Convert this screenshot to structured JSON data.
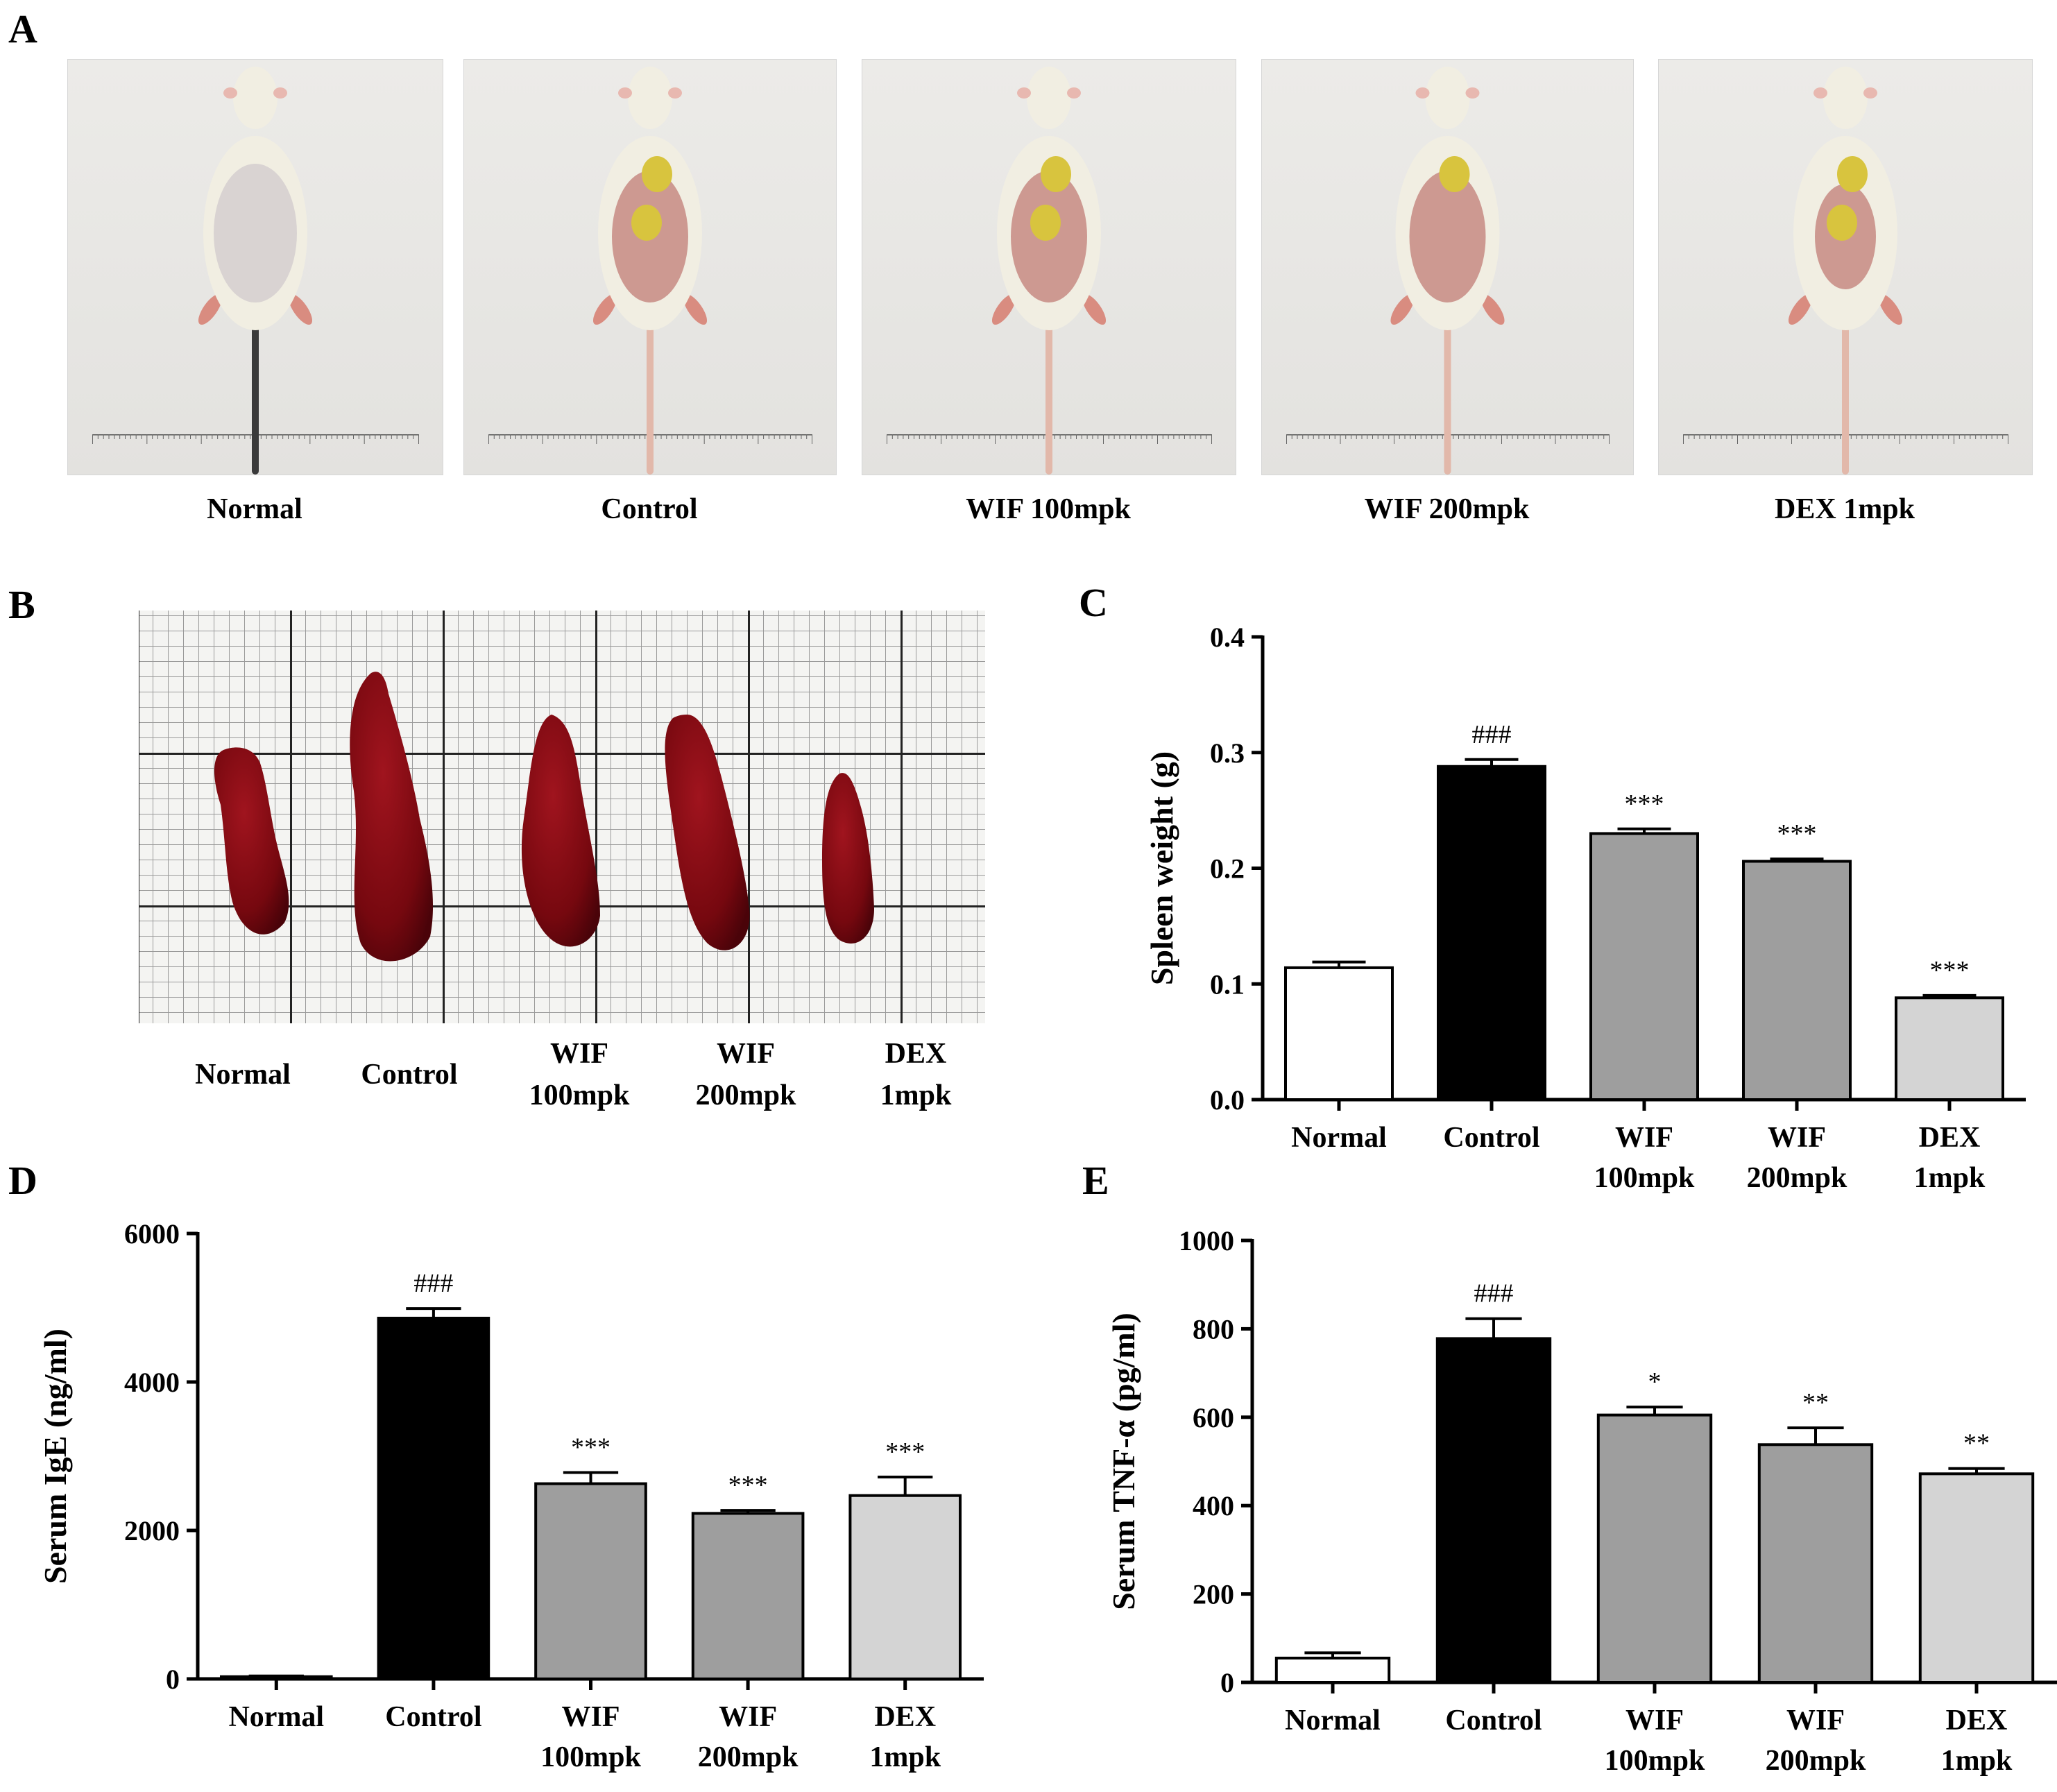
{
  "panels": {
    "A": {
      "letter": "A",
      "groups": [
        "Normal",
        "Control",
        "WIF 100mpk",
        "WIF 200mpk",
        "DEX 1mpk"
      ]
    },
    "B": {
      "letter": "B",
      "labels": [
        {
          "line1": "Normal",
          "line2": ""
        },
        {
          "line1": "Control",
          "line2": ""
        },
        {
          "line1": "WIF",
          "line2": "100mpk"
        },
        {
          "line1": "WIF",
          "line2": "200mpk"
        },
        {
          "line1": "DEX",
          "line2": "1mpk"
        }
      ]
    },
    "C": {
      "letter": "C"
    },
    "D": {
      "letter": "D"
    },
    "E": {
      "letter": "E"
    }
  },
  "chart_data": [
    {
      "panel": "C",
      "type": "bar",
      "categories": [
        [
          "Normal"
        ],
        [
          "Control"
        ],
        [
          "WIF",
          "100mpk"
        ],
        [
          "WIF",
          "200mpk"
        ],
        [
          "DEX",
          "1mpk"
        ]
      ],
      "values": [
        0.114,
        0.288,
        0.23,
        0.206,
        0.088
      ],
      "errors": [
        0.005,
        0.006,
        0.004,
        0.002,
        0.002
      ],
      "annotations": [
        "",
        "###",
        "***",
        "***",
        "***"
      ],
      "bar_colors": [
        "#ffffff",
        "#000000",
        "#9e9e9e",
        "#9e9e9e",
        "#d4d4d4"
      ],
      "ylabel": "Spleen weight (g)",
      "ylim": [
        0,
        0.4
      ],
      "yticks": [
        0,
        0.1,
        0.2,
        0.3,
        0.4
      ],
      "yticklabels": [
        "0.0",
        "0.1",
        "0.2",
        "0.3",
        "0.4"
      ]
    },
    {
      "panel": "D",
      "type": "bar",
      "categories": [
        [
          "Normal"
        ],
        [
          "Control"
        ],
        [
          "WIF",
          "100mpk"
        ],
        [
          "WIF",
          "200mpk"
        ],
        [
          "DEX",
          "1mpk"
        ]
      ],
      "values": [
        30,
        4860,
        2630,
        2230,
        2470
      ],
      "errors": [
        10,
        130,
        150,
        40,
        250
      ],
      "annotations": [
        "",
        "###",
        "***",
        "***",
        "***"
      ],
      "bar_colors": [
        "#ffffff",
        "#000000",
        "#9e9e9e",
        "#9e9e9e",
        "#d4d4d4"
      ],
      "ylabel": "Serum IgE (ng/ml)",
      "ylim": [
        0,
        6000
      ],
      "yticks": [
        0,
        2000,
        4000,
        6000
      ],
      "yticklabels": [
        "0",
        "2000",
        "4000",
        "6000"
      ]
    },
    {
      "panel": "E",
      "type": "bar",
      "categories": [
        [
          "Normal"
        ],
        [
          "Control"
        ],
        [
          "WIF",
          "100mpk"
        ],
        [
          "WIF",
          "200mpk"
        ],
        [
          "DEX",
          "1mpk"
        ]
      ],
      "values": [
        55,
        778,
        605,
        538,
        472
      ],
      "errors": [
        12,
        45,
        18,
        38,
        12
      ],
      "annotations": [
        "",
        "###",
        "*",
        "**",
        "**"
      ],
      "bar_colors": [
        "#ffffff",
        "#000000",
        "#9e9e9e",
        "#9e9e9e",
        "#d4d4d4"
      ],
      "ylabel": "Serum TNF-α (pg/ml)",
      "ylim": [
        0,
        1000
      ],
      "yticks": [
        0,
        200,
        400,
        600,
        800,
        1000
      ],
      "yticklabels": [
        "0",
        "200",
        "400",
        "600",
        "800",
        "1000"
      ]
    }
  ],
  "colors": {
    "mouse_fur": "#f1eee2",
    "lesion": "#c78a82",
    "scab": "#d8c43e",
    "spleen": "#7a0a12",
    "tail": "#e2b8aa"
  },
  "icons": {
    "mouse_photo": "mouse-photo",
    "spleen_photo": "spleen-photo"
  }
}
